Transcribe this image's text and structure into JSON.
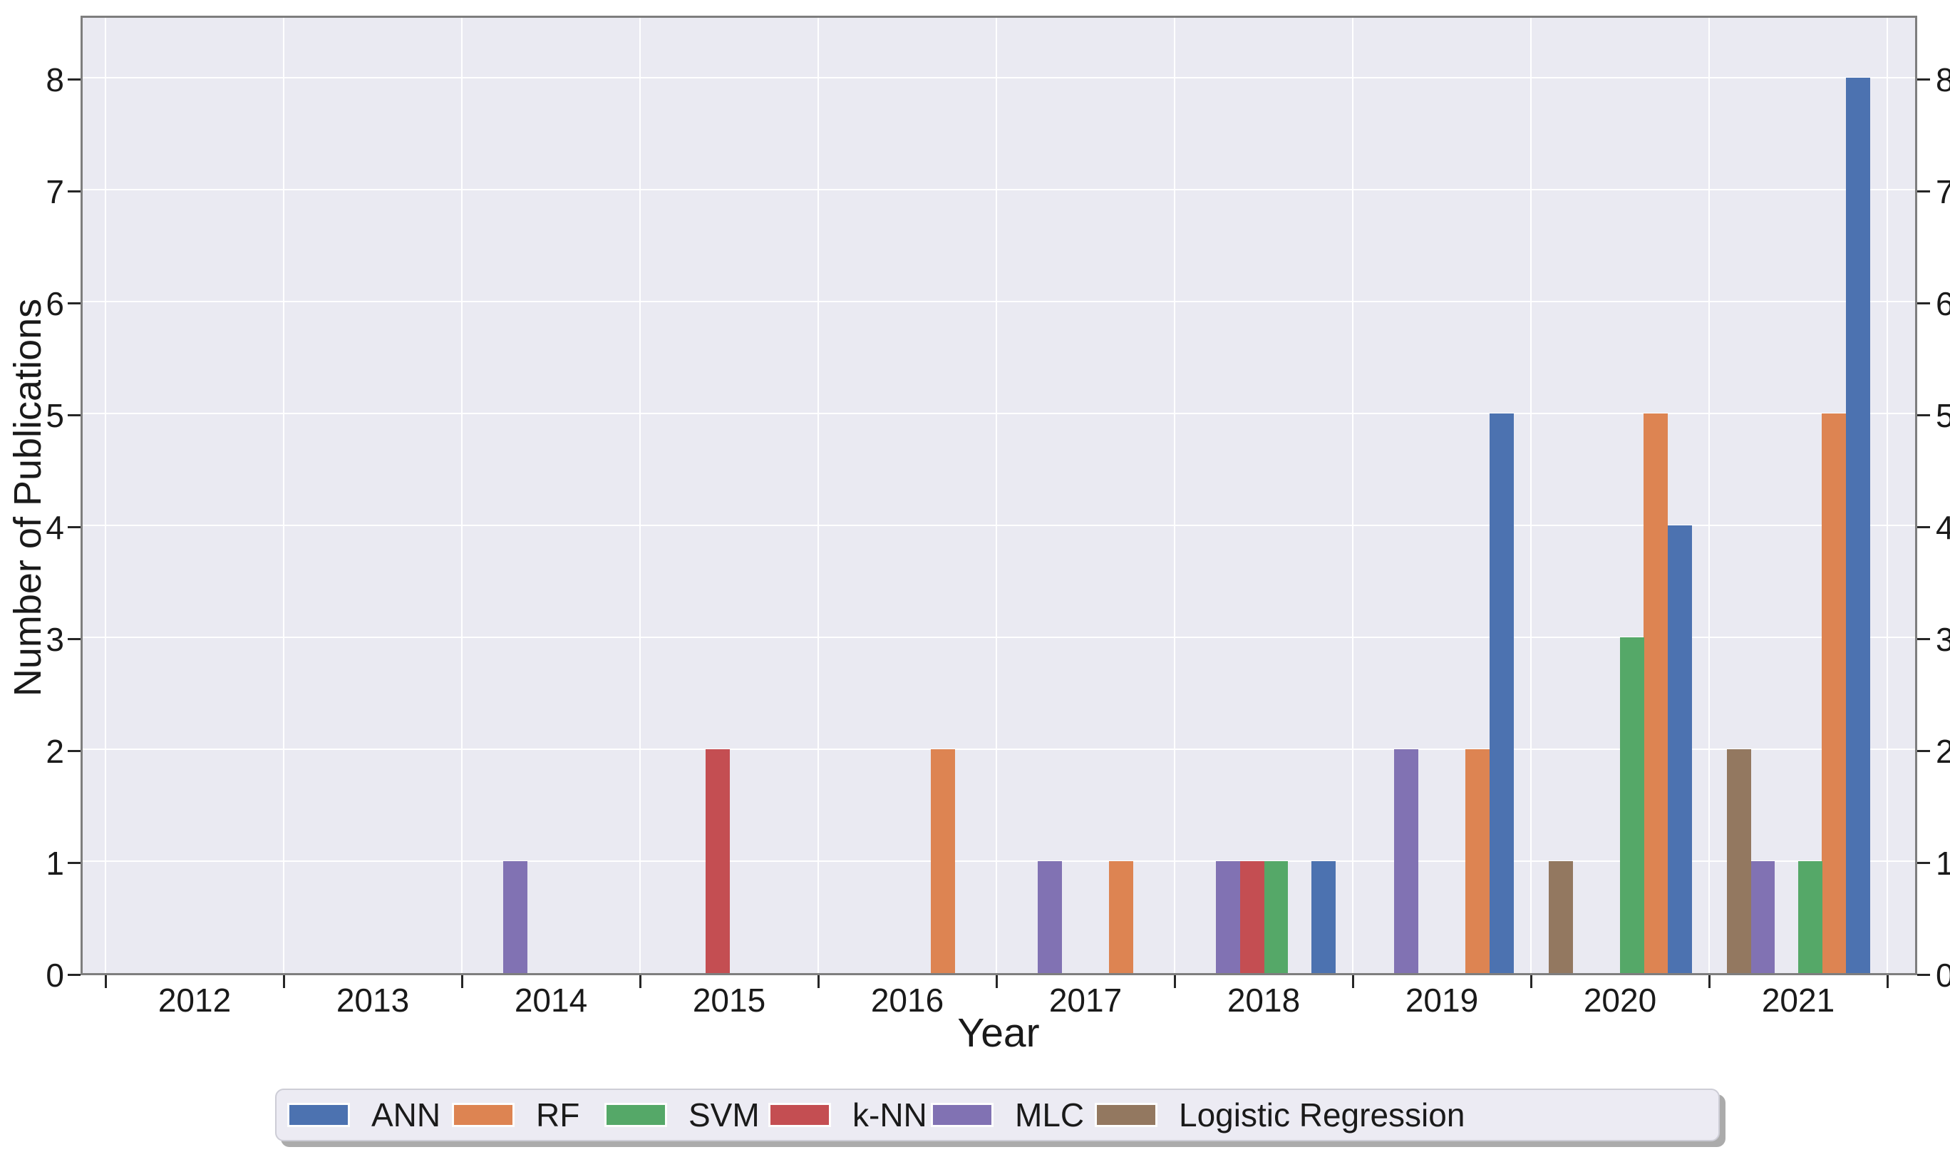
{
  "chart_data": {
    "type": "bar",
    "title": "",
    "xlabel": "Year",
    "ylabel": "Number of Publications",
    "categories": [
      "2012",
      "2013",
      "2014",
      "2015",
      "2016",
      "2017",
      "2018",
      "2019",
      "2020",
      "2021"
    ],
    "series": [
      {
        "name": "ANN",
        "color": "#4C72B0",
        "values": [
          0,
          0,
          0,
          0,
          0,
          0,
          1,
          5,
          4,
          8
        ]
      },
      {
        "name": "RF",
        "color": "#DD8452",
        "values": [
          0,
          0,
          0,
          0,
          2,
          1,
          0,
          2,
          5,
          5
        ]
      },
      {
        "name": "SVM",
        "color": "#55A868",
        "values": [
          0,
          0,
          0,
          0,
          0,
          0,
          1,
          0,
          3,
          1
        ]
      },
      {
        "name": "k-NN",
        "color": "#C44E52",
        "values": [
          0,
          0,
          0,
          2,
          0,
          0,
          1,
          0,
          0,
          0
        ]
      },
      {
        "name": "MLC",
        "color": "#8172B3",
        "values": [
          0,
          0,
          1,
          0,
          0,
          1,
          1,
          2,
          0,
          1
        ]
      },
      {
        "name": "Logistic Regression",
        "color": "#937860",
        "values": [
          0,
          0,
          0,
          0,
          0,
          0,
          0,
          0,
          1,
          2
        ]
      }
    ],
    "bar_order_left_to_right": [
      "Logistic Regression",
      "MLC",
      "k-NN",
      "SVM",
      "RF",
      "ANN"
    ],
    "y_ticks": [
      "0",
      "1",
      "2",
      "3",
      "4",
      "5",
      "6",
      "7",
      "8"
    ],
    "ylim": [
      0,
      8.57
    ],
    "y_axis_sides": [
      "left",
      "right"
    ],
    "grid": true,
    "legend_position": "bottom",
    "legend_entries": [
      "ANN",
      "RF",
      "SVM",
      "k-NN",
      "MLC",
      "Logistic Regression"
    ],
    "plot_bg_color": "#EAEAF2",
    "grid_color": "#FFFFFF",
    "spine_color": "#7E7E7E",
    "tick_label_color": "#1a1a1a"
  }
}
